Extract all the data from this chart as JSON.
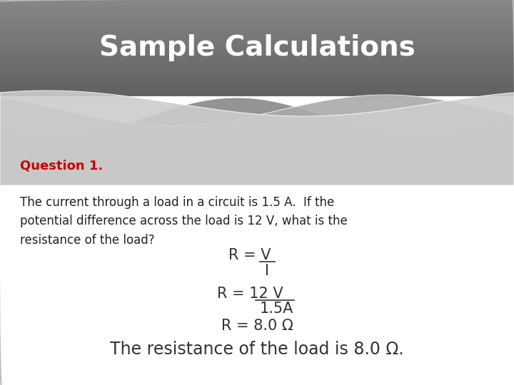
{
  "title": "Sample Calculations",
  "title_color": "#ffffff",
  "title_fontsize": 28,
  "bg_color": "#ffffff",
  "question_label": "Question 1.",
  "question_color": "#cc0000",
  "question_fontsize": 13,
  "body_text": "The current through a load in a circuit is 1.5 A.  If the\npotential difference across the load is 12 V, what is the\nresistance of the load?",
  "body_color": "#222222",
  "body_fontsize": 12,
  "formula3": "R = 8.0 Ω",
  "conclusion": "The resistance of the load is 8.0 Ω.",
  "formula_color": "#333333",
  "formula_fontsize": 15,
  "conclusion_fontsize": 17
}
